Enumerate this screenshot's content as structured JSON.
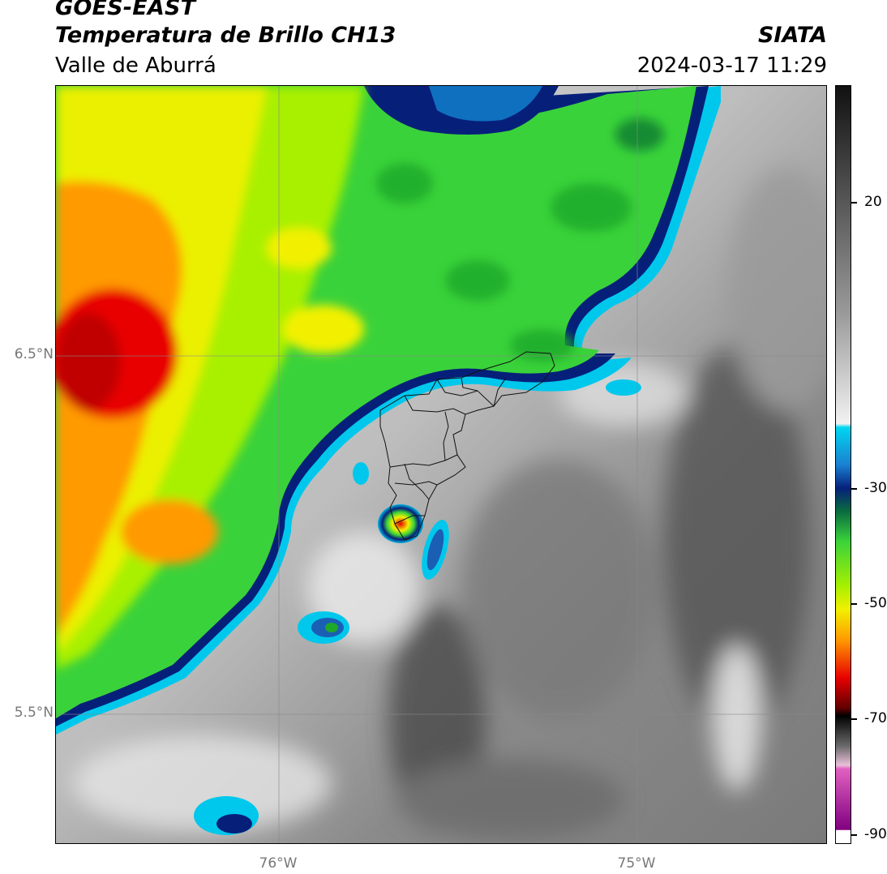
{
  "header": {
    "satellite": "GOES-EAST",
    "product": "Temperatura de Brillo CH13",
    "region": "Valle de Aburrá",
    "organization": "SIATA",
    "timestamp": "2024-03-17 11:29"
  },
  "map": {
    "lat_ticks": [
      {
        "label": "6.5°N",
        "value": 6.5
      },
      {
        "label": "5.5°N",
        "value": 5.5
      }
    ],
    "lon_ticks": [
      {
        "label": "76°W",
        "value": -76.0
      },
      {
        "label": "75°W",
        "value": -75.0
      }
    ],
    "extent": {
      "lon_min": -76.62,
      "lon_max": -74.47,
      "lat_min": 5.13,
      "lat_max": 7.25
    }
  },
  "colorbar": {
    "range": [
      -91,
      35
    ],
    "ticks": [
      {
        "label": "20",
        "value": 20
      },
      {
        "label": "-30",
        "value": -30
      },
      {
        "label": "-50",
        "value": -50
      },
      {
        "label": "-70",
        "value": -70
      },
      {
        "label": "-90",
        "value": -90
      }
    ],
    "colors": {
      "cold_cloud_green": "#3ad23a",
      "yellow": "#f2f000",
      "orange": "#ff9a00",
      "red": "#e80000",
      "navy": "#06207a",
      "cyan": "#00d6f0",
      "magenta": "#e060c0",
      "gray_dark": "#3a3a3a",
      "gray_light": "#e8e8e8"
    }
  }
}
